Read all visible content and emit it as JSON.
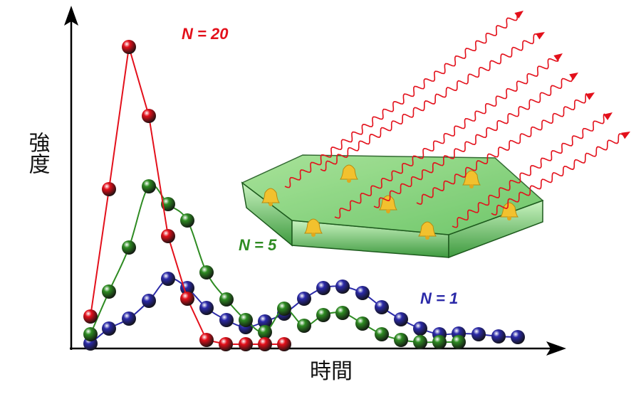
{
  "axes": {
    "y_label": "強度",
    "x_label": "時間"
  },
  "curves": [
    {
      "label": "N = 20",
      "color": "#e3101b"
    },
    {
      "label": "N = 5",
      "color": "#2e8b22"
    },
    {
      "label": "N = 1",
      "color": "#2b2aa8"
    }
  ]
}
